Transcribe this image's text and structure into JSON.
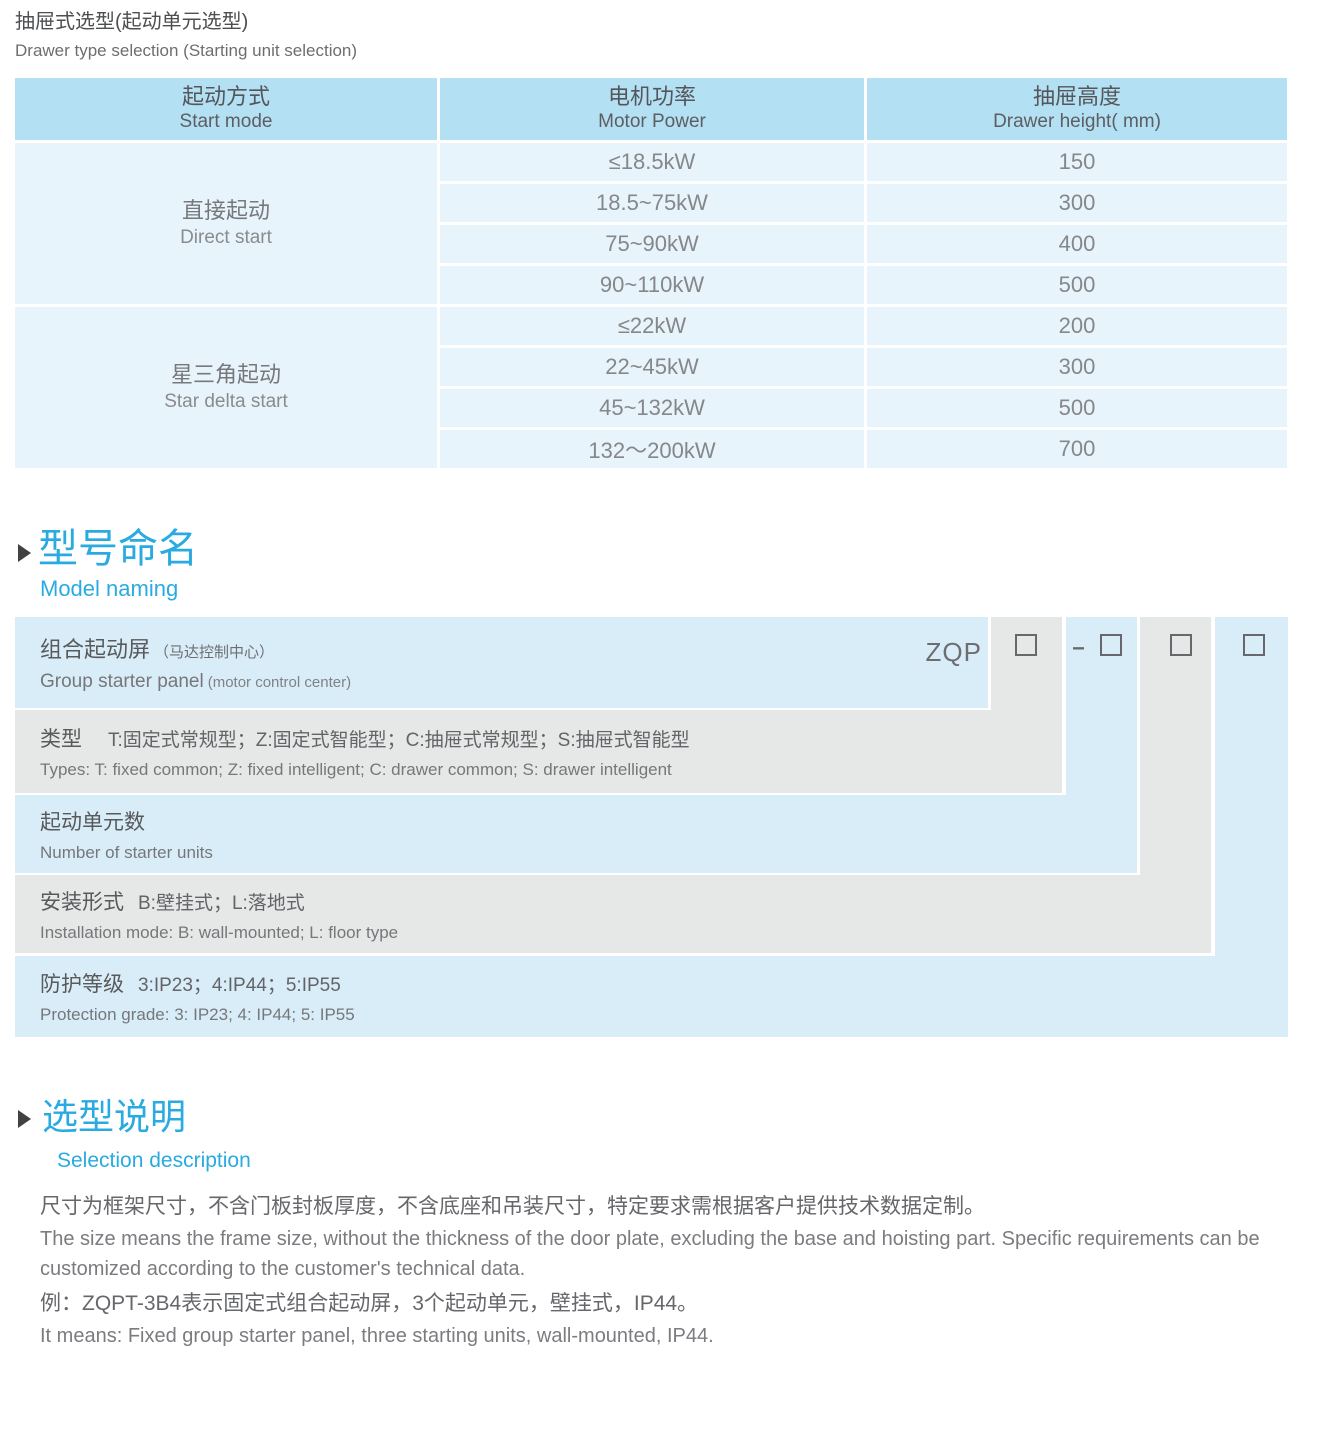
{
  "page": {
    "title_cn": "抽屉式选型(起动单元选型)",
    "title_en": "Drawer type selection (Starting unit selection)"
  },
  "table": {
    "headers": {
      "start_mode_cn": "起动方式",
      "start_mode_en": "Start mode",
      "motor_power_cn": "电机功率",
      "motor_power_en": "Motor Power",
      "drawer_height_cn": "抽屉高度",
      "drawer_height_en": "Drawer height( mm)"
    },
    "groups": [
      {
        "name_cn": "直接起动",
        "name_en": "Direct start",
        "rows": [
          {
            "power": "≤18.5kW",
            "height": "150"
          },
          {
            "power": "18.5~75kW",
            "height": "300"
          },
          {
            "power": "75~90kW",
            "height": "400"
          },
          {
            "power": "90~110kW",
            "height": "500"
          }
        ]
      },
      {
        "name_cn": "星三角起动",
        "name_en": "Star delta start",
        "rows": [
          {
            "power": "≤22kW",
            "height": "200"
          },
          {
            "power": "22~45kW",
            "height": "300"
          },
          {
            "power": "45~132kW",
            "height": "500"
          },
          {
            "power": "132～200kW",
            "height": "700"
          }
        ]
      }
    ]
  },
  "model_naming": {
    "heading_cn": "型号命名",
    "heading_en": "Model naming",
    "code_prefix": "ZQP",
    "code_dash": "-",
    "rows": [
      {
        "cn_label": "组合起动屏",
        "cn_note": "（马达控制中心）",
        "en_label": "Group starter panel",
        "en_note": "(motor control center)"
      },
      {
        "cn_label": "类型",
        "cn_detail": "T:固定式常规型；Z:固定式智能型；C:抽屉式常规型；S:抽屉式智能型",
        "en": "Types: T: fixed common; Z: fixed intelligent; C: drawer common; S: drawer intelligent"
      },
      {
        "cn_label": "起动单元数",
        "en": "Number of starter units"
      },
      {
        "cn_label": "安装形式",
        "cn_detail": "B:壁挂式；L:落地式",
        "en": "Installation mode: B: wall-mounted; L: floor type"
      },
      {
        "cn_label": "防护等级",
        "cn_detail": "3:IP23；4:IP44；5:IP55",
        "en": "Protection grade:  3: IP23; 4: IP44; 5: IP55"
      }
    ]
  },
  "selection": {
    "heading_cn": "选型说明",
    "heading_en": "Selection description",
    "para_cn": "尺寸为框架尺寸，不含门板封板厚度，不含底座和吊装尺寸，特定要求需根据客户提供技术数据定制。",
    "para_en_line1": "The size means the frame size, without the thickness of the door plate, excluding the base and hoisting part. Specific requirements can be",
    "para_en_line2": "customized according to the customer's technical data.",
    "example_cn": "例：ZQPT-3B4表示固定式组合起动屏，3个起动单元，壁挂式，IP44。",
    "example_en": "It means: Fixed group starter panel, three starting units, wall-mounted, IP44."
  },
  "colors": {
    "accent": "#29abe2",
    "table_header_bg": "#b4e0f4",
    "table_cell_bg": "#e8f4fb",
    "diagram_blue": "#d9edf9",
    "diagram_gray": "#e6e7e7"
  }
}
